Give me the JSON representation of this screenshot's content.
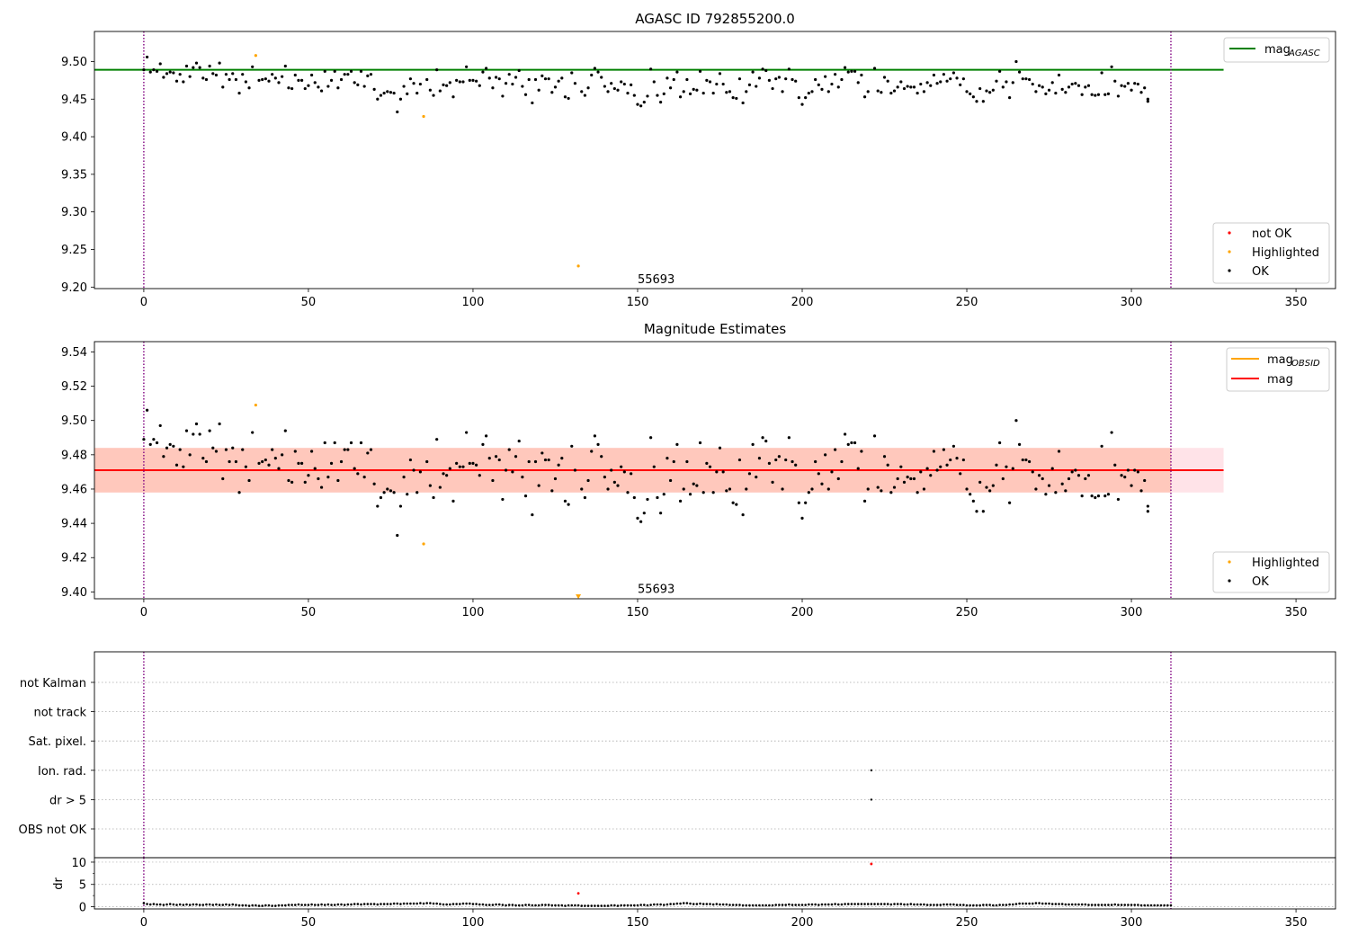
{
  "chart_data": [
    {
      "type": "scatter",
      "title": "AGASC ID 792855200.0",
      "xlim": [
        -15,
        362
      ],
      "ylim": [
        9.198,
        9.54
      ],
      "xticks": [
        0,
        50,
        100,
        150,
        200,
        250,
        300,
        350
      ],
      "yticks": [
        9.2,
        9.25,
        9.3,
        9.35,
        9.4,
        9.45,
        9.5
      ],
      "hlines": [
        {
          "name": "mag_AGASC",
          "y": 9.489,
          "x_range": [
            -15,
            328
          ],
          "color": "#008000"
        }
      ],
      "vlines": [
        0,
        312
      ],
      "annotation": {
        "text": "55693",
        "x": 150,
        "y": 9.21
      },
      "legend_lines": [
        {
          "label": "mag",
          "sub": "AGASC",
          "color": "#008000"
        }
      ],
      "legend_points": [
        {
          "label": "not OK",
          "color": "#ff0000"
        },
        {
          "label": "Highlighted",
          "color": "#ffa500"
        },
        {
          "label": "OK",
          "color": "#000000"
        }
      ],
      "highlighted_points": [
        [
          34,
          9.508
        ],
        [
          85,
          9.427
        ],
        [
          132,
          9.228
        ]
      ],
      "ok_series": "ok_mag"
    },
    {
      "type": "scatter",
      "title": "Magnitude Estimates",
      "xlim": [
        -15,
        362
      ],
      "ylim": [
        9.396,
        9.546
      ],
      "xticks": [
        0,
        50,
        100,
        150,
        200,
        250,
        300,
        350
      ],
      "yticks": [
        9.4,
        9.42,
        9.44,
        9.46,
        9.48,
        9.5,
        9.52,
        9.54
      ],
      "band_outer": {
        "low": 9.458,
        "high": 9.484,
        "color": "#ffc0cb"
      },
      "band_inner": {
        "low": 9.458,
        "high": 9.484,
        "x_range": [
          -15,
          312
        ],
        "color": "#ffa07a"
      },
      "hlines": [
        {
          "name": "mag",
          "y": 9.471,
          "x_range": [
            -15,
            328
          ],
          "color": "#ff0000"
        }
      ],
      "vlines": [
        0,
        312
      ],
      "annotation": {
        "text": "55693",
        "x": 150,
        "y": 9.4
      },
      "legend_lines": [
        {
          "label": "mag",
          "sub": "OBSID",
          "color": "#ffa500"
        },
        {
          "label": "mag",
          "sub": "",
          "color": "#ff0000"
        }
      ],
      "legend_points": [
        {
          "label": "Highlighted",
          "color": "#ffa500"
        },
        {
          "label": "OK",
          "color": "#000000"
        }
      ],
      "highlighted_points": [
        [
          34,
          9.509
        ],
        [
          85,
          9.428
        ]
      ],
      "highlighted_marker": [
        132,
        9.397
      ],
      "ok_series": "ok_mag"
    },
    {
      "type": "scatter",
      "title": "",
      "categories": [
        "not Kalman",
        "not track",
        "Sat. pixel.",
        "Ion. rad.",
        "dr > 5",
        "OBS not OK"
      ],
      "flag_points": [
        {
          "category": "Ion. rad.",
          "x": 221
        },
        {
          "category": "dr > 5",
          "x": 221
        }
      ],
      "vlines": [
        0,
        312
      ],
      "xlim": [
        -15,
        362
      ]
    },
    {
      "type": "scatter",
      "title": "",
      "ylabel": "dr",
      "xlim": [
        -15,
        362
      ],
      "ylim": [
        -0.5,
        11
      ],
      "xticks": [
        0,
        50,
        100,
        150,
        200,
        250,
        300,
        350
      ],
      "yticks": [
        0,
        5,
        10
      ],
      "red_points": [
        [
          132,
          3.0
        ],
        [
          221,
          9.6
        ]
      ],
      "vlines": [
        0,
        312
      ]
    }
  ],
  "ok_mag": [
    [
      0,
      9.489
    ],
    [
      1,
      9.506
    ],
    [
      2,
      9.486
    ],
    [
      3,
      9.489
    ],
    [
      4,
      9.487
    ],
    [
      5,
      9.497
    ],
    [
      6,
      9.479
    ],
    [
      7,
      9.484
    ],
    [
      8,
      9.486
    ],
    [
      9,
      9.485
    ],
    [
      10,
      9.474
    ],
    [
      11,
      9.483
    ],
    [
      12,
      9.473
    ],
    [
      13,
      9.494
    ],
    [
      14,
      9.48
    ],
    [
      15,
      9.492
    ],
    [
      16,
      9.498
    ],
    [
      17,
      9.492
    ],
    [
      18,
      9.478
    ],
    [
      19,
      9.476
    ],
    [
      20,
      9.494
    ],
    [
      21,
      9.484
    ],
    [
      22,
      9.482
    ],
    [
      23,
      9.498
    ],
    [
      24,
      9.466
    ],
    [
      25,
      9.483
    ],
    [
      26,
      9.476
    ],
    [
      27,
      9.484
    ],
    [
      28,
      9.476
    ],
    [
      29,
      9.458
    ],
    [
      30,
      9.483
    ],
    [
      31,
      9.473
    ],
    [
      32,
      9.465
    ],
    [
      33,
      9.493
    ],
    [
      35,
      9.475
    ],
    [
      36,
      9.476
    ],
    [
      37,
      9.477
    ],
    [
      38,
      9.474
    ],
    [
      39,
      9.483
    ],
    [
      40,
      9.478
    ],
    [
      41,
      9.472
    ],
    [
      42,
      9.48
    ],
    [
      43,
      9.494
    ],
    [
      44,
      9.465
    ],
    [
      45,
      9.464
    ],
    [
      46,
      9.482
    ],
    [
      47,
      9.475
    ],
    [
      48,
      9.475
    ],
    [
      49,
      9.464
    ],
    [
      50,
      9.468
    ],
    [
      51,
      9.482
    ],
    [
      52,
      9.472
    ],
    [
      53,
      9.466
    ],
    [
      54,
      9.461
    ],
    [
      55,
      9.487
    ],
    [
      56,
      9.467
    ],
    [
      57,
      9.475
    ],
    [
      58,
      9.487
    ],
    [
      59,
      9.465
    ],
    [
      60,
      9.476
    ],
    [
      61,
      9.483
    ],
    [
      62,
      9.483
    ],
    [
      63,
      9.487
    ],
    [
      64,
      9.472
    ],
    [
      65,
      9.469
    ],
    [
      66,
      9.487
    ],
    [
      67,
      9.467
    ],
    [
      68,
      9.481
    ],
    [
      69,
      9.483
    ],
    [
      70,
      9.463
    ],
    [
      71,
      9.45
    ],
    [
      72,
      9.455
    ],
    [
      73,
      9.458
    ],
    [
      74,
      9.46
    ],
    [
      75,
      9.459
    ],
    [
      76,
      9.458
    ],
    [
      77,
      9.433
    ],
    [
      78,
      9.45
    ],
    [
      79,
      9.467
    ],
    [
      80,
      9.457
    ],
    [
      81,
      9.477
    ],
    [
      82,
      9.471
    ],
    [
      83,
      9.458
    ],
    [
      84,
      9.47
    ],
    [
      86,
      9.476
    ],
    [
      87,
      9.462
    ],
    [
      88,
      9.455
    ],
    [
      89,
      9.489
    ],
    [
      90,
      9.461
    ],
    [
      91,
      9.469
    ],
    [
      92,
      9.468
    ],
    [
      93,
      9.472
    ],
    [
      94,
      9.453
    ],
    [
      95,
      9.475
    ],
    [
      96,
      9.473
    ],
    [
      97,
      9.473
    ],
    [
      98,
      9.493
    ],
    [
      99,
      9.475
    ],
    [
      100,
      9.475
    ],
    [
      101,
      9.474
    ],
    [
      102,
      9.468
    ],
    [
      103,
      9.486
    ],
    [
      104,
      9.491
    ],
    [
      105,
      9.478
    ],
    [
      106,
      9.465
    ],
    [
      107,
      9.479
    ],
    [
      108,
      9.477
    ],
    [
      109,
      9.454
    ],
    [
      110,
      9.471
    ],
    [
      111,
      9.483
    ],
    [
      112,
      9.47
    ],
    [
      113,
      9.479
    ],
    [
      114,
      9.488
    ],
    [
      115,
      9.467
    ],
    [
      116,
      9.456
    ],
    [
      117,
      9.476
    ],
    [
      118,
      9.445
    ],
    [
      119,
      9.476
    ],
    [
      120,
      9.462
    ],
    [
      121,
      9.481
    ],
    [
      122,
      9.477
    ],
    [
      123,
      9.477
    ],
    [
      124,
      9.459
    ],
    [
      125,
      9.466
    ],
    [
      126,
      9.474
    ],
    [
      127,
      9.478
    ],
    [
      128,
      9.453
    ],
    [
      129,
      9.451
    ],
    [
      130,
      9.485
    ],
    [
      131,
      9.471
    ],
    [
      133,
      9.46
    ],
    [
      134,
      9.455
    ],
    [
      135,
      9.465
    ],
    [
      136,
      9.482
    ],
    [
      137,
      9.491
    ],
    [
      138,
      9.486
    ],
    [
      139,
      9.479
    ],
    [
      140,
      9.467
    ],
    [
      141,
      9.46
    ],
    [
      142,
      9.471
    ],
    [
      143,
      9.464
    ],
    [
      144,
      9.462
    ],
    [
      145,
      9.473
    ],
    [
      146,
      9.47
    ],
    [
      147,
      9.458
    ],
    [
      148,
      9.469
    ],
    [
      149,
      9.455
    ],
    [
      150,
      9.443
    ],
    [
      151,
      9.441
    ],
    [
      152,
      9.446
    ],
    [
      153,
      9.454
    ],
    [
      154,
      9.49
    ],
    [
      155,
      9.473
    ],
    [
      156,
      9.455
    ],
    [
      157,
      9.446
    ],
    [
      158,
      9.457
    ],
    [
      159,
      9.478
    ],
    [
      160,
      9.465
    ],
    [
      161,
      9.476
    ],
    [
      162,
      9.486
    ],
    [
      163,
      9.453
    ],
    [
      164,
      9.46
    ],
    [
      165,
      9.476
    ],
    [
      166,
      9.457
    ],
    [
      167,
      9.463
    ],
    [
      168,
      9.462
    ],
    [
      169,
      9.487
    ],
    [
      170,
      9.458
    ],
    [
      171,
      9.475
    ],
    [
      172,
      9.473
    ],
    [
      173,
      9.458
    ],
    [
      174,
      9.47
    ],
    [
      175,
      9.484
    ],
    [
      176,
      9.47
    ],
    [
      177,
      9.459
    ],
    [
      178,
      9.46
    ],
    [
      179,
      9.452
    ],
    [
      180,
      9.451
    ],
    [
      181,
      9.477
    ],
    [
      182,
      9.445
    ],
    [
      183,
      9.46
    ],
    [
      184,
      9.469
    ],
    [
      185,
      9.486
    ],
    [
      186,
      9.467
    ],
    [
      187,
      9.478
    ],
    [
      188,
      9.49
    ],
    [
      189,
      9.488
    ],
    [
      190,
      9.475
    ],
    [
      191,
      9.464
    ],
    [
      192,
      9.477
    ],
    [
      193,
      9.479
    ],
    [
      194,
      9.46
    ],
    [
      195,
      9.477
    ],
    [
      196,
      9.49
    ],
    [
      197,
      9.476
    ],
    [
      198,
      9.474
    ],
    [
      199,
      9.452
    ],
    [
      200,
      9.443
    ],
    [
      201,
      9.452
    ],
    [
      202,
      9.458
    ],
    [
      203,
      9.46
    ],
    [
      204,
      9.476
    ],
    [
      205,
      9.469
    ],
    [
      206,
      9.463
    ],
    [
      207,
      9.48
    ],
    [
      208,
      9.46
    ],
    [
      209,
      9.47
    ],
    [
      210,
      9.483
    ],
    [
      211,
      9.466
    ],
    [
      212,
      9.476
    ],
    [
      213,
      9.492
    ],
    [
      214,
      9.486
    ],
    [
      215,
      9.487
    ],
    [
      216,
      9.487
    ],
    [
      217,
      9.472
    ],
    [
      218,
      9.482
    ],
    [
      219,
      9.453
    ],
    [
      220,
      9.46
    ],
    [
      222,
      9.491
    ],
    [
      223,
      9.461
    ],
    [
      224,
      9.459
    ],
    [
      225,
      9.479
    ],
    [
      226,
      9.474
    ],
    [
      227,
      9.458
    ],
    [
      228,
      9.461
    ],
    [
      229,
      9.466
    ],
    [
      230,
      9.473
    ],
    [
      231,
      9.464
    ],
    [
      232,
      9.467
    ],
    [
      233,
      9.466
    ],
    [
      234,
      9.466
    ],
    [
      235,
      9.458
    ],
    [
      236,
      9.47
    ],
    [
      237,
      9.46
    ],
    [
      238,
      9.472
    ],
    [
      239,
      9.468
    ],
    [
      240,
      9.482
    ],
    [
      241,
      9.471
    ],
    [
      242,
      9.473
    ],
    [
      243,
      9.483
    ],
    [
      244,
      9.474
    ],
    [
      245,
      9.477
    ],
    [
      246,
      9.485
    ],
    [
      247,
      9.478
    ],
    [
      248,
      9.469
    ],
    [
      249,
      9.477
    ],
    [
      250,
      9.46
    ],
    [
      251,
      9.457
    ],
    [
      252,
      9.453
    ],
    [
      253,
      9.447
    ],
    [
      254,
      9.464
    ],
    [
      255,
      9.447
    ],
    [
      256,
      9.461
    ],
    [
      257,
      9.459
    ],
    [
      258,
      9.462
    ],
    [
      259,
      9.474
    ],
    [
      260,
      9.487
    ],
    [
      261,
      9.466
    ],
    [
      262,
      9.473
    ],
    [
      263,
      9.452
    ],
    [
      264,
      9.472
    ],
    [
      265,
      9.5
    ],
    [
      266,
      9.486
    ],
    [
      267,
      9.477
    ],
    [
      268,
      9.477
    ],
    [
      269,
      9.476
    ],
    [
      270,
      9.47
    ],
    [
      271,
      9.46
    ],
    [
      272,
      9.468
    ],
    [
      273,
      9.466
    ],
    [
      274,
      9.457
    ],
    [
      275,
      9.462
    ],
    [
      276,
      9.472
    ],
    [
      277,
      9.458
    ],
    [
      278,
      9.482
    ],
    [
      279,
      9.463
    ],
    [
      280,
      9.459
    ],
    [
      281,
      9.466
    ],
    [
      282,
      9.47
    ],
    [
      283,
      9.471
    ],
    [
      284,
      9.468
    ],
    [
      285,
      9.456
    ],
    [
      286,
      9.466
    ],
    [
      287,
      9.468
    ],
    [
      288,
      9.456
    ],
    [
      289,
      9.455
    ],
    [
      290,
      9.456
    ],
    [
      291,
      9.485
    ],
    [
      292,
      9.456
    ],
    [
      293,
      9.457
    ],
    [
      294,
      9.493
    ],
    [
      295,
      9.474
    ],
    [
      296,
      9.454
    ],
    [
      297,
      9.468
    ],
    [
      298,
      9.467
    ],
    [
      299,
      9.471
    ],
    [
      300,
      9.462
    ],
    [
      301,
      9.471
    ],
    [
      302,
      9.47
    ],
    [
      303,
      9.459
    ],
    [
      304,
      9.465
    ],
    [
      305,
      9.45
    ],
    [
      305,
      9.447
    ]
  ],
  "dr_values": [
    0.8,
    0.6,
    0.5,
    0.6,
    0.5,
    0.5,
    0.4,
    0.5,
    0.6,
    0.5,
    0.4,
    0.5,
    0.4,
    0.5,
    0.4,
    0.5,
    0.5,
    0.4,
    0.4,
    0.5,
    0.5,
    0.4,
    0.5,
    0.4,
    0.4,
    0.5,
    0.4,
    0.5,
    0.4,
    0.3,
    0.3,
    0.3,
    0.2,
    0.3,
    0.3,
    0.2,
    0.2,
    0.3,
    0.3,
    0.2,
    0.2,
    0.3,
    0.3,
    0.3,
    0.4,
    0.4,
    0.4,
    0.5,
    0.4,
    0.4,
    0.4,
    0.5,
    0.4,
    0.4,
    0.5,
    0.4,
    0.5,
    0.4,
    0.4,
    0.5,
    0.5,
    0.4,
    0.5,
    0.5,
    0.6,
    0.6,
    0.5,
    0.6,
    0.6,
    0.6,
    0.6,
    0.5,
    0.6,
    0.6,
    0.6,
    0.6,
    0.7,
    0.7,
    0.6,
    0.7,
    0.7,
    0.7,
    0.7,
    0.7,
    0.8,
    0.7,
    0.8,
    0.8,
    0.7,
    0.7,
    0.6,
    0.5,
    0.5,
    0.5,
    0.6,
    0.6,
    0.6,
    0.7,
    0.7,
    0.7,
    0.6,
    0.6,
    0.5,
    0.5,
    0.4,
    0.4,
    0.4,
    0.5,
    0.5,
    0.4,
    0.3,
    0.4,
    0.4,
    0.3,
    0.3,
    0.3,
    0.4,
    0.4,
    0.3,
    0.3,
    0.3,
    0.4,
    0.4,
    0.4,
    0.3,
    0.3,
    0.3,
    0.3,
    0.2,
    0.3,
    0.3,
    0.3,
    0.3,
    0.2,
    0.2,
    0.2,
    0.2,
    0.2,
    0.2,
    0.2,
    0.2,
    0.2,
    0.3,
    0.3,
    0.2,
    0.3,
    0.3,
    0.3,
    0.3,
    0.3,
    0.3,
    0.4,
    0.4,
    0.3,
    0.4,
    0.5,
    0.5,
    0.5,
    0.4,
    0.5,
    0.6,
    0.6,
    0.7,
    0.7,
    0.8,
    0.8,
    0.7,
    0.6,
    0.6,
    0.7,
    0.6,
    0.6,
    0.6,
    0.5,
    0.6,
    0.5,
    0.5,
    0.5,
    0.4,
    0.4,
    0.4,
    0.4,
    0.3,
    0.3,
    0.3,
    0.3,
    0.3,
    0.3,
    0.3,
    0.3,
    0.3,
    0.3,
    0.4,
    0.4,
    0.4,
    0.4,
    0.5,
    0.4,
    0.4,
    0.4,
    0.4,
    0.4,
    0.5,
    0.5,
    0.5,
    0.4,
    0.5,
    0.5,
    0.5,
    0.5,
    0.6,
    0.5,
    0.5,
    0.6,
    0.6,
    0.6,
    0.6,
    0.6,
    0.6,
    0.6,
    0.6,
    0.6,
    0.6,
    0.6,
    0.6,
    0.6,
    0.6,
    0.5,
    0.6,
    0.6,
    0.6,
    0.5,
    0.5,
    0.6,
    0.5,
    0.5,
    0.5,
    0.5,
    0.4,
    0.4,
    0.4,
    0.4,
    0.4,
    0.5,
    0.5,
    0.5,
    0.5,
    0.4,
    0.4,
    0.4,
    0.3,
    0.3,
    0.3,
    0.3,
    0.3,
    0.4,
    0.4,
    0.4,
    0.3,
    0.3,
    0.4,
    0.4,
    0.4,
    0.5,
    0.5,
    0.6,
    0.7,
    0.7,
    0.7,
    0.7,
    0.7,
    0.8,
    0.8,
    0.7,
    0.7,
    0.7,
    0.6,
    0.6,
    0.6,
    0.6,
    0.5,
    0.5,
    0.5,
    0.5,
    0.5,
    0.5,
    0.5,
    0.4,
    0.4,
    0.4,
    0.4,
    0.4,
    0.4,
    0.4,
    0.4,
    0.5,
    0.4,
    0.4,
    0.4,
    0.4,
    0.4,
    0.4,
    0.4,
    0.3,
    0.3,
    0.3,
    0.3,
    0.3,
    0.3,
    0.3,
    0.3,
    0.3,
    0.3
  ]
}
